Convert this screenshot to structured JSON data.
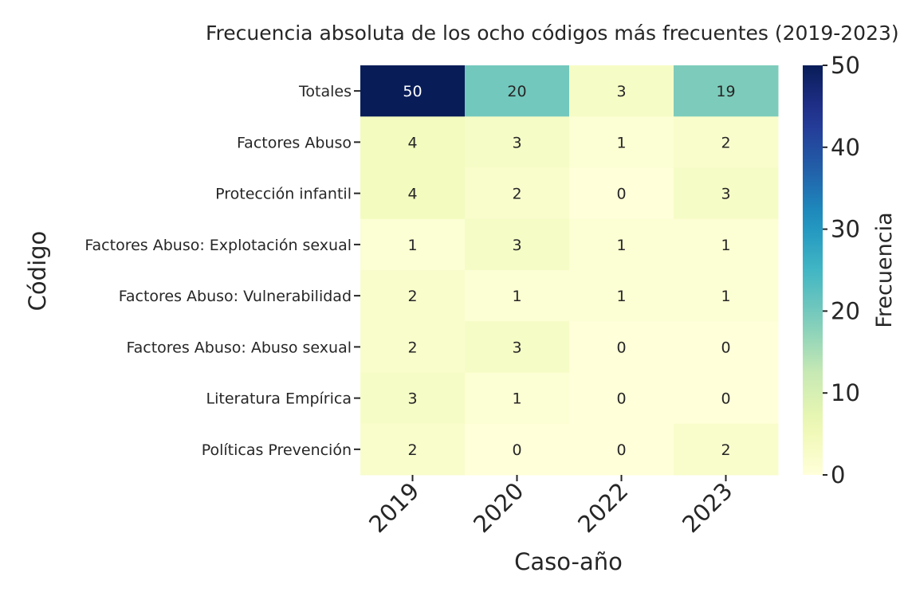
{
  "chart_data": {
    "type": "heatmap",
    "title": "Frecuencia absoluta de los ocho códigos más frecuentes (2019-2023)",
    "xlabel": "Caso-año",
    "ylabel": "Código",
    "x_categories": [
      "2019",
      "2020",
      "2022",
      "2023"
    ],
    "y_categories": [
      "Totales",
      "Factores Abuso",
      "Protección infantil",
      "Factores Abuso: Explotación sexual",
      "Factores Abuso: Vulnerabilidad",
      "Factores Abuso: Abuso sexual",
      "Literatura Empírica",
      "Políticas Prevención"
    ],
    "values": [
      [
        50,
        20,
        3,
        19
      ],
      [
        4,
        3,
        1,
        2
      ],
      [
        4,
        2,
        0,
        3
      ],
      [
        1,
        3,
        1,
        1
      ],
      [
        2,
        1,
        1,
        1
      ],
      [
        2,
        3,
        0,
        0
      ],
      [
        3,
        1,
        0,
        0
      ],
      [
        2,
        0,
        0,
        2
      ]
    ],
    "value_range": [
      0,
      50
    ],
    "colormap": "YlGnBu",
    "colorbar": {
      "label": "Frecuencia",
      "ticks": [
        0,
        10,
        20,
        30,
        40,
        50
      ]
    },
    "annotations_shown": true,
    "grid": false
  }
}
